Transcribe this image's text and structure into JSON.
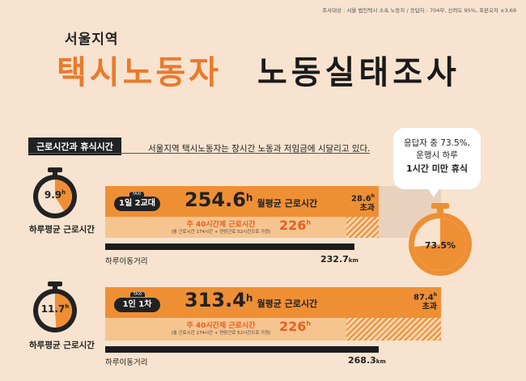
{
  "survey_info": "조사대상 : 서울 법인택시 소속 노동자 / 응답자 : 704부, 신뢰도 95%, 표본오차 ±3.69",
  "subtitle": "서울지역",
  "title_left": "택시노동자",
  "title_right": "노동실태조사",
  "section_label": "근로시간과 휴식시간",
  "description": "서울지역 택시노동자는 장시간 노동과 저임금에 시달리고 있다.",
  "bubble": {
    "line1": "응답자 중 73.5%,",
    "line2": "운행시 하루",
    "line3": "1시간 미만 휴식"
  },
  "rest_value": "73.5",
  "rest_unit": "%",
  "rest_fraction": 0.735,
  "colors": {
    "accent": "#ef8f34",
    "dark": "#222222",
    "background": "#f7e3cf"
  },
  "rows": [
    {
      "daily_hours": "9.9",
      "daily_unit": "h",
      "daily_label": "하루평균 근로시간",
      "daily_fraction": 0.41,
      "taxi_sign": "TAXI",
      "taxi_label": "1일 2교대",
      "monthly_hours": "254.6",
      "monthly_unit": "h",
      "monthly_label": "월평균 근로시간",
      "overtime_value": "28.6",
      "overtime_unit": "h",
      "overtime_label": "초과",
      "standard_title": "주 40시간제 근로시간",
      "standard_note": "(월 근로시간 174시간 + 연장근로 52시간으로 가정)",
      "standard_value": "226",
      "standard_unit": "h",
      "distance_label": "하루이동거리",
      "distance_value": "232.7",
      "distance_unit": "km"
    },
    {
      "daily_hours": "11.7",
      "daily_unit": "h",
      "daily_label": "하루평균 근로시간",
      "daily_fraction": 0.49,
      "taxi_sign": "TAXI",
      "taxi_label": "1인 1차",
      "monthly_hours": "313.4",
      "monthly_unit": "h",
      "monthly_label": "월평균 근로시간",
      "overtime_value": "87.4",
      "overtime_unit": "h",
      "overtime_label": "초과",
      "standard_title": "주 40시간제 근로시간",
      "standard_note": "(월 근로시간 174시간 + 연장근로 52시간으로 가정)",
      "standard_value": "226",
      "standard_unit": "h",
      "distance_label": "하루이동거리",
      "distance_value": "268.3",
      "distance_unit": "km"
    }
  ]
}
